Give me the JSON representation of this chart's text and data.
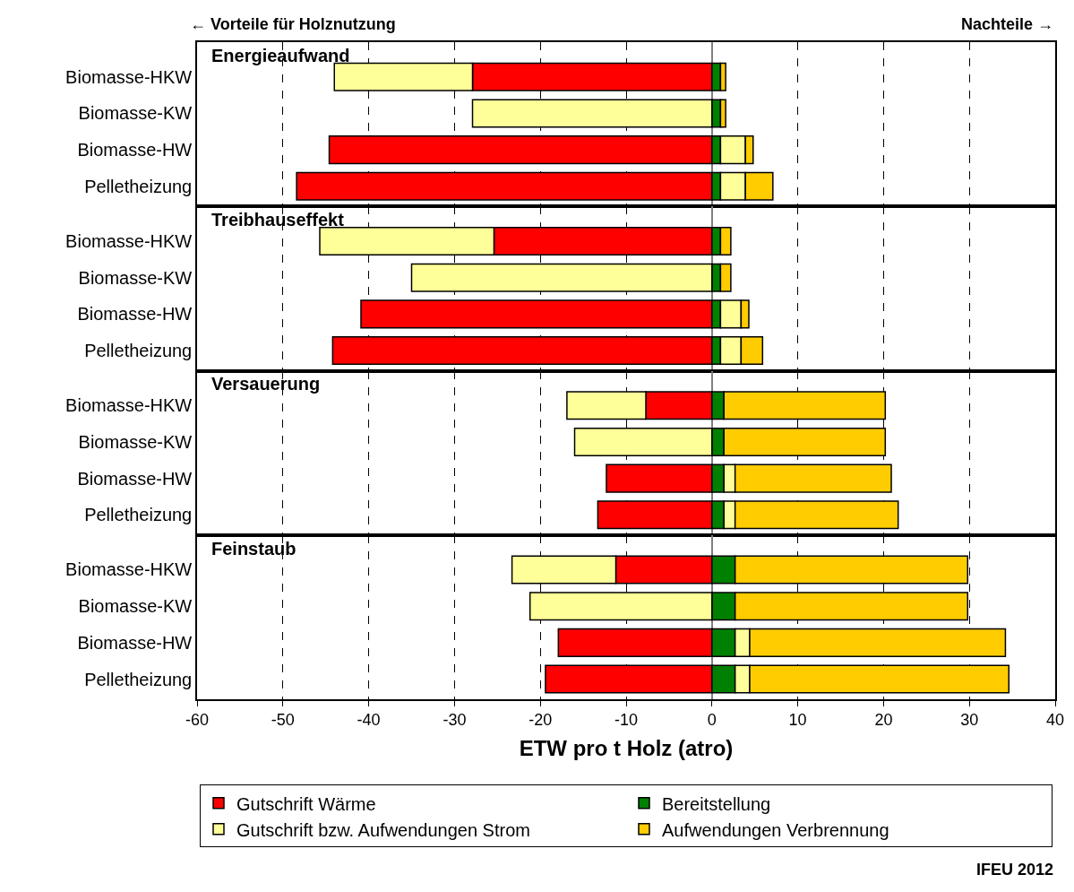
{
  "chart_data": [
    {
      "type": "bar",
      "title": "Energieaufwand",
      "orientation": "horizontal",
      "stacked": true,
      "grid": "x",
      "tick_labels": "y",
      "legend": "bottom",
      "xlim": [
        -60,
        40
      ],
      "xticks": [
        -60,
        -50,
        -40,
        -30,
        -20,
        -10,
        0,
        10,
        20,
        30,
        40
      ],
      "categories": [
        "Biomasse-HKW",
        "Biomasse-KW",
        "Biomasse-HW",
        "Pelletheizung"
      ],
      "annotations": [
        "← Vorteile für Holznutzung",
        "Nachteile →"
      ],
      "series": [
        {
          "name": "Gutschrift Wärme",
          "color": "#ff0000",
          "values": [
            -27.9,
            null,
            -44.6,
            -48.4
          ]
        },
        {
          "name": "Bereitstellung",
          "color": "#008000",
          "values": [
            1.0,
            1.0,
            1.0,
            1.0
          ]
        },
        {
          "name": "Gutschrift bzw. Aufwendungen Strom",
          "color": "#ffff99",
          "values": [
            -16.1,
            -27.9,
            2.9,
            2.9
          ]
        },
        {
          "name": "Aufwendungen Verbrennung",
          "color": "#ffcc00",
          "values": [
            0.6,
            0.6,
            0.9,
            3.2
          ]
        }
      ]
    },
    {
      "type": "bar",
      "title": "Treibhauseffekt",
      "orientation": "horizontal",
      "stacked": true,
      "grid": "x",
      "tick_labels": "y",
      "xlim": [
        -60,
        40
      ],
      "xticks": [
        -60,
        -50,
        -40,
        -30,
        -20,
        -10,
        0,
        10,
        20,
        30,
        40
      ],
      "categories": [
        "Biomasse-HKW",
        "Biomasse-KW",
        "Biomasse-HW",
        "Pelletheizung"
      ],
      "series": [
        {
          "color": "#ff0000",
          "values": [
            -25.4,
            null,
            -40.9,
            -44.2
          ]
        },
        {
          "color": "#008000",
          "values": [
            1.0,
            1.0,
            1.0,
            1.0
          ]
        },
        {
          "color": "#ffff99",
          "values": [
            -20.3,
            -35.0,
            2.4,
            2.4
          ]
        },
        {
          "color": "#ffcc00",
          "values": [
            1.2,
            1.2,
            0.9,
            2.5
          ]
        }
      ]
    },
    {
      "type": "bar",
      "title": "Versauerung",
      "orientation": "horizontal",
      "stacked": true,
      "grid": "x",
      "tick_labels": "y",
      "xlim": [
        -60,
        40
      ],
      "xticks": [
        -60,
        -50,
        -40,
        -30,
        -20,
        -10,
        0,
        10,
        20,
        30,
        40
      ],
      "categories": [
        "Biomasse-HKW",
        "Biomasse-KW",
        "Biomasse-HW",
        "Pelletheizung"
      ],
      "series": [
        {
          "color": "#ff0000",
          "values": [
            -7.7,
            null,
            -12.3,
            -13.3
          ]
        },
        {
          "color": "#008000",
          "values": [
            1.4,
            1.4,
            1.4,
            1.4
          ]
        },
        {
          "color": "#ffff99",
          "values": [
            -9.2,
            -16.0,
            1.3,
            1.3
          ]
        },
        {
          "color": "#ffcc00",
          "values": [
            18.8,
            18.8,
            18.2,
            19.0
          ]
        }
      ]
    },
    {
      "type": "bar",
      "title": "Feinstaub",
      "orientation": "horizontal",
      "stacked": true,
      "grid": "x",
      "xlim": [
        -60,
        40
      ],
      "xticks": [
        -60,
        -50,
        -40,
        -30,
        -20,
        -10,
        0,
        10,
        20,
        30,
        40
      ],
      "xlabel": "ETW pro t Holz (atro)",
      "categories": [
        "Biomasse-HKW",
        "Biomasse-KW",
        "Biomasse-HW",
        "Pelletheizung"
      ],
      "annotations": [
        "IFEU 2012"
      ],
      "series": [
        {
          "color": "#ff0000",
          "values": [
            -11.2,
            null,
            -17.9,
            -19.4
          ]
        },
        {
          "color": "#008000",
          "values": [
            2.7,
            2.7,
            2.7,
            2.7
          ]
        },
        {
          "color": "#ffff99",
          "values": [
            -12.1,
            -21.2,
            1.7,
            1.7
          ]
        },
        {
          "color": "#ffcc00",
          "values": [
            27.1,
            27.1,
            29.8,
            30.2
          ]
        }
      ]
    }
  ]
}
